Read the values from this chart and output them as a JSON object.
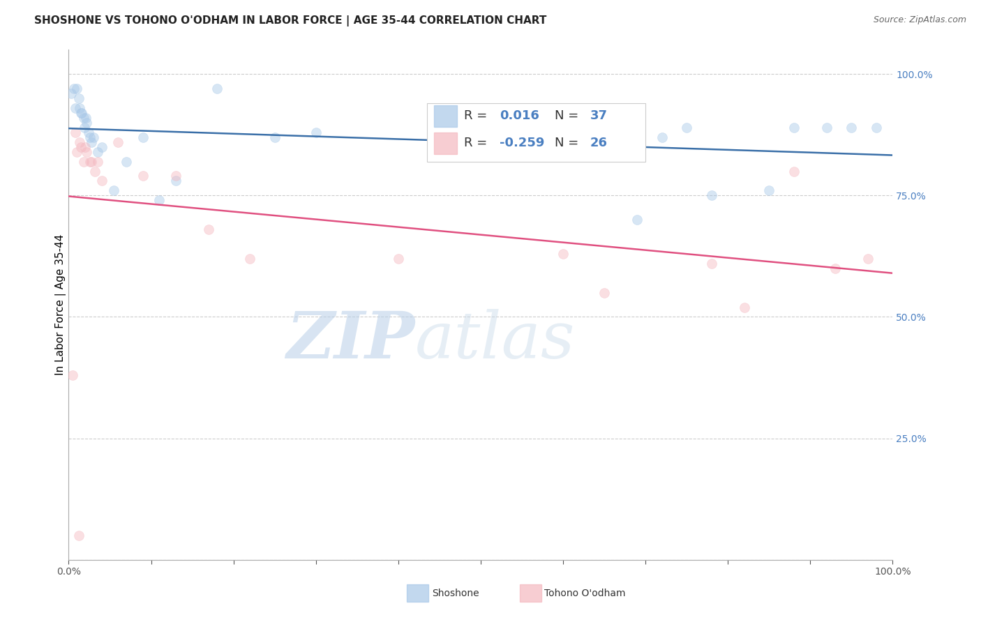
{
  "title": "SHOSHONE VS TOHONO O'ODHAM IN LABOR FORCE | AGE 35-44 CORRELATION CHART",
  "source": "Source: ZipAtlas.com",
  "ylabel": "In Labor Force | Age 35-44",
  "xlim": [
    0.0,
    1.0
  ],
  "ylim": [
    0.0,
    1.05
  ],
  "yticks": [
    0.0,
    0.25,
    0.5,
    0.75,
    1.0
  ],
  "ytick_labels": [
    "",
    "25.0%",
    "50.0%",
    "75.0%",
    "100.0%"
  ],
  "shoshone_R": 0.016,
  "shoshone_N": 37,
  "tohono_R": -0.259,
  "tohono_N": 26,
  "shoshone_color": "#a8c8e8",
  "tohono_color": "#f4b8c0",
  "shoshone_line_color": "#3a6fa8",
  "tohono_line_color": "#e05080",
  "watermark_zip": "ZIP",
  "watermark_atlas": "atlas",
  "shoshone_points_x": [
    0.003,
    0.006,
    0.008,
    0.01,
    0.012,
    0.013,
    0.015,
    0.016,
    0.018,
    0.019,
    0.021,
    0.022,
    0.024,
    0.026,
    0.028,
    0.03,
    0.035,
    0.04,
    0.055,
    0.07,
    0.09,
    0.11,
    0.13,
    0.18,
    0.25,
    0.3,
    0.5,
    0.65,
    0.69,
    0.72,
    0.75,
    0.78,
    0.85,
    0.88,
    0.92,
    0.95,
    0.98
  ],
  "shoshone_points_y": [
    0.96,
    0.97,
    0.93,
    0.97,
    0.95,
    0.93,
    0.92,
    0.92,
    0.91,
    0.89,
    0.91,
    0.9,
    0.88,
    0.87,
    0.86,
    0.87,
    0.84,
    0.85,
    0.76,
    0.82,
    0.87,
    0.74,
    0.78,
    0.97,
    0.87,
    0.88,
    0.87,
    0.88,
    0.7,
    0.87,
    0.89,
    0.75,
    0.76,
    0.89,
    0.89,
    0.89,
    0.89
  ],
  "tohono_points_x": [
    0.005,
    0.008,
    0.01,
    0.013,
    0.015,
    0.018,
    0.02,
    0.022,
    0.026,
    0.028,
    0.032,
    0.035,
    0.04,
    0.06,
    0.09,
    0.13,
    0.17,
    0.22,
    0.4,
    0.6,
    0.65,
    0.78,
    0.82,
    0.88,
    0.93,
    0.97
  ],
  "tohono_points_y": [
    0.38,
    0.88,
    0.84,
    0.86,
    0.85,
    0.82,
    0.85,
    0.84,
    0.82,
    0.82,
    0.8,
    0.82,
    0.78,
    0.86,
    0.79,
    0.79,
    0.68,
    0.62,
    0.62,
    0.63,
    0.55,
    0.61,
    0.52,
    0.8,
    0.6,
    0.62
  ],
  "tohono_extra_x": [
    0.012
  ],
  "tohono_extra_y": [
    0.05
  ],
  "background_color": "#ffffff",
  "grid_color": "#cccccc",
  "title_fontsize": 11,
  "axis_label_fontsize": 11,
  "tick_fontsize": 10,
  "legend_fontsize": 13,
  "source_fontsize": 9,
  "marker_size": 100,
  "marker_alpha": 0.45
}
